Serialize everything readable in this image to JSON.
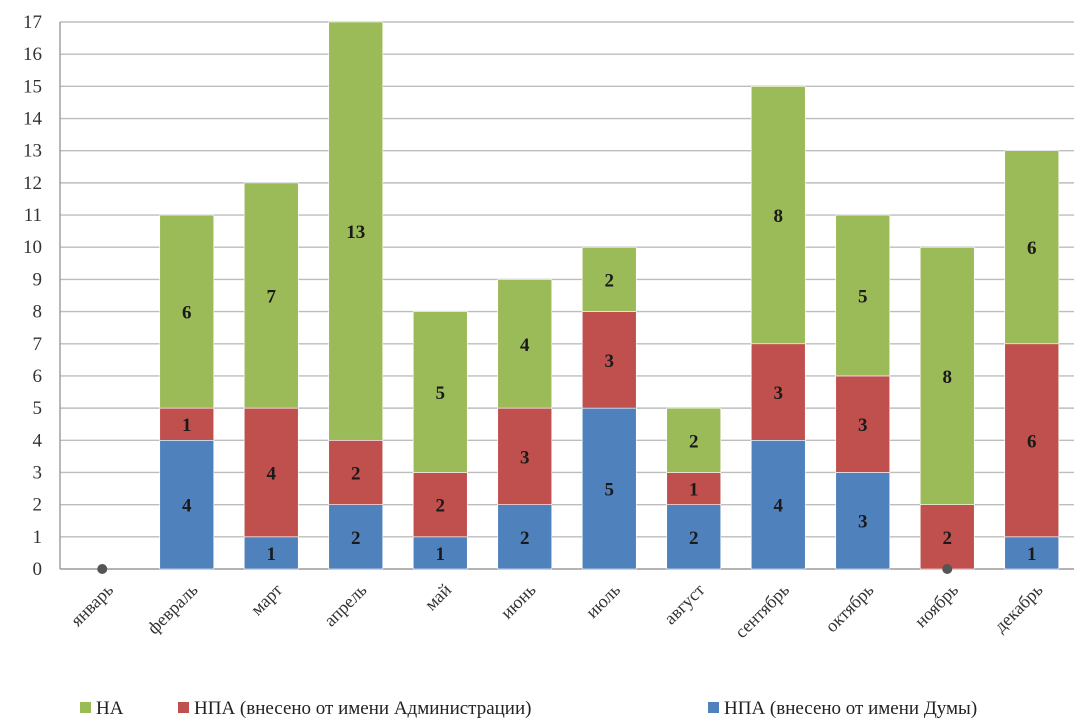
{
  "chart_data": {
    "type": "bar",
    "stacked": true,
    "categories": [
      "январь",
      "февраль",
      "март",
      "апрель",
      "май",
      "июнь",
      "июль",
      "август",
      "сентябрь",
      "октябрь",
      "ноябрь",
      "декабрь"
    ],
    "series": [
      {
        "name": "НПА (внесено от имени Думы)",
        "color": "#4f81bd",
        "values": [
          0,
          4,
          1,
          2,
          1,
          2,
          5,
          2,
          4,
          3,
          0,
          1
        ]
      },
      {
        "name": "НПА (внесено от имени Администрации)",
        "color": "#c0504d",
        "values": [
          0,
          1,
          4,
          2,
          2,
          3,
          3,
          1,
          3,
          3,
          2,
          6
        ]
      },
      {
        "name": "НА",
        "color": "#9bbb59",
        "values": [
          0,
          6,
          7,
          13,
          5,
          4,
          2,
          2,
          8,
          5,
          8,
          6
        ]
      }
    ],
    "legend_order": [
      2,
      1,
      0
    ],
    "ylim": [
      0,
      17
    ],
    "yticks": [
      "0",
      "1",
      "2",
      "3",
      "4",
      "5",
      "6",
      "7",
      "8",
      "9",
      "10",
      "11",
      "12",
      "13",
      "14",
      "15",
      "16",
      "17"
    ],
    "grid": true,
    "legend_position": "bottom",
    "title": "",
    "xlabel": "",
    "ylabel": ""
  }
}
